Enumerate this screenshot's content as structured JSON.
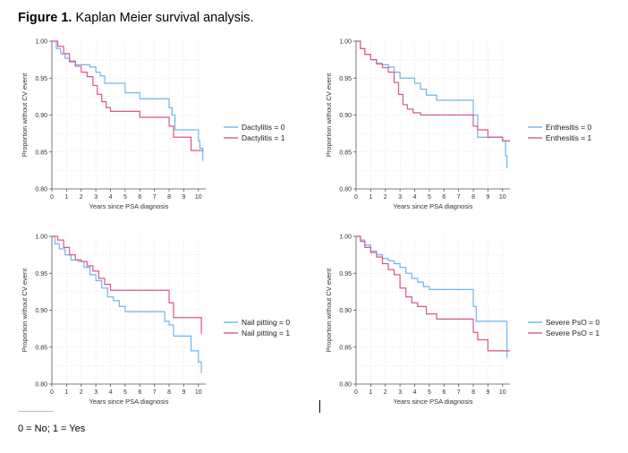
{
  "figure": {
    "title_lead": "Figure 1.",
    "title_rest": " Kaplan Meier survival analysis.",
    "footnote": "0 = No; 1 = Yes"
  },
  "colors": {
    "group0": "#6fb6e8",
    "group1": "#d9568c",
    "axis": "#555555",
    "grid": "#e3e3e3"
  },
  "chart_data": [
    {
      "type": "line",
      "xlabel": "Years since PSA diagnosis",
      "ylabel": "Proportion without CV event",
      "xlim": [
        0,
        10.5
      ],
      "ylim": [
        0.8,
        1.0
      ],
      "xticks": [
        "0",
        "1",
        "2",
        "3",
        "4",
        "5",
        "6",
        "7",
        "8",
        "9",
        "10"
      ],
      "yticks": [
        "0.80",
        "0.85",
        "0.90",
        "0.95",
        "1.00"
      ],
      "grid": true,
      "legend": "right",
      "series": [
        {
          "name": "Dactylitis = 0",
          "x": [
            0,
            0.3,
            0.6,
            0.9,
            1.2,
            1.6,
            2.0,
            2.6,
            3.0,
            3.3,
            3.6,
            4.0,
            5.0,
            6.0,
            7.0,
            8.0,
            8.2,
            8.4,
            9.0,
            9.5,
            10.0,
            10.1,
            10.3
          ],
          "y": [
            1.0,
            0.99,
            0.983,
            0.977,
            0.972,
            0.968,
            0.968,
            0.965,
            0.958,
            0.953,
            0.943,
            0.943,
            0.93,
            0.922,
            0.922,
            0.91,
            0.9,
            0.88,
            0.88,
            0.88,
            0.865,
            0.855,
            0.838
          ]
        },
        {
          "name": "Dactylitis = 1",
          "x": [
            0,
            0.4,
            0.8,
            1.2,
            1.6,
            2.0,
            2.4,
            2.8,
            3.1,
            3.4,
            3.7,
            4.0,
            5.0,
            6.0,
            7.0,
            8.0,
            8.3,
            9.0,
            9.5,
            10.0,
            10.3
          ],
          "y": [
            1.0,
            0.993,
            0.983,
            0.973,
            0.966,
            0.958,
            0.952,
            0.94,
            0.928,
            0.918,
            0.91,
            0.905,
            0.905,
            0.897,
            0.897,
            0.885,
            0.87,
            0.87,
            0.852,
            0.852,
            0.852
          ]
        }
      ]
    },
    {
      "type": "line",
      "xlabel": "Years since PSA diagnosis",
      "ylabel": "Proportion without CV event",
      "xlim": [
        0,
        10.5
      ],
      "ylim": [
        0.8,
        1.0
      ],
      "xticks": [
        "0",
        "1",
        "2",
        "3",
        "4",
        "5",
        "6",
        "7",
        "8",
        "9",
        "10"
      ],
      "yticks": [
        "0.80",
        "0.85",
        "0.90",
        "0.95",
        "1.00"
      ],
      "grid": true,
      "legend": "right",
      "series": [
        {
          "name": "Enthesitis = 0",
          "x": [
            0,
            0.3,
            0.6,
            1.0,
            1.4,
            1.8,
            2.2,
            2.6,
            3.0,
            3.5,
            4.0,
            4.4,
            4.8,
            5.5,
            6.0,
            7.0,
            8.0,
            8.3,
            9.0,
            9.5,
            10.0,
            10.2,
            10.3
          ],
          "y": [
            1.0,
            0.99,
            0.982,
            0.975,
            0.97,
            0.968,
            0.965,
            0.958,
            0.95,
            0.95,
            0.943,
            0.935,
            0.927,
            0.92,
            0.92,
            0.92,
            0.9,
            0.87,
            0.87,
            0.87,
            0.865,
            0.845,
            0.828
          ]
        },
        {
          "name": "Enthesitis = 1",
          "x": [
            0,
            0.3,
            0.6,
            1.0,
            1.4,
            1.8,
            2.2,
            2.6,
            2.9,
            3.2,
            3.5,
            3.9,
            4.4,
            5.0,
            6.0,
            7.0,
            8.0,
            8.3,
            9.0,
            10.0,
            10.5
          ],
          "y": [
            1.0,
            0.99,
            0.982,
            0.975,
            0.969,
            0.964,
            0.958,
            0.944,
            0.928,
            0.914,
            0.908,
            0.903,
            0.9,
            0.9,
            0.9,
            0.9,
            0.885,
            0.88,
            0.87,
            0.865,
            0.865
          ]
        }
      ]
    },
    {
      "type": "line",
      "xlabel": "Years since PSA diagnosis",
      "ylabel": "Proportion without CV event",
      "xlim": [
        0,
        10.5
      ],
      "ylim": [
        0.8,
        1.0
      ],
      "xticks": [
        "0",
        "1",
        "2",
        "3",
        "4",
        "5",
        "6",
        "7",
        "8",
        "9",
        "10"
      ],
      "yticks": [
        "0.80",
        "0.85",
        "0.90",
        "0.95",
        "1.00"
      ],
      "grid": true,
      "legend": "right",
      "series": [
        {
          "name": "Nail pitting = 0",
          "x": [
            0,
            0.2,
            0.5,
            0.9,
            1.3,
            1.8,
            2.2,
            2.6,
            3.0,
            3.4,
            3.8,
            4.2,
            4.6,
            5.0,
            5.5,
            6.0,
            7.0,
            7.7,
            8.0,
            8.3,
            9.0,
            9.5,
            10.0,
            10.2
          ],
          "y": [
            1.0,
            0.99,
            0.983,
            0.975,
            0.968,
            0.966,
            0.958,
            0.948,
            0.94,
            0.93,
            0.918,
            0.913,
            0.905,
            0.898,
            0.898,
            0.898,
            0.898,
            0.885,
            0.88,
            0.865,
            0.865,
            0.845,
            0.83,
            0.815
          ]
        },
        {
          "name": "Nail pitting = 1",
          "x": [
            0,
            0.4,
            0.8,
            1.2,
            1.6,
            2.0,
            2.4,
            2.8,
            3.2,
            3.6,
            4.0,
            5.0,
            6.0,
            7.0,
            8.0,
            8.3,
            9.0,
            10.0,
            10.2
          ],
          "y": [
            1.0,
            0.995,
            0.985,
            0.975,
            0.968,
            0.966,
            0.96,
            0.953,
            0.943,
            0.935,
            0.927,
            0.927,
            0.927,
            0.927,
            0.91,
            0.89,
            0.89,
            0.89,
            0.868
          ]
        }
      ]
    },
    {
      "type": "line",
      "xlabel": "Years since PSA diagnosis",
      "ylabel": "Proportion without CV event",
      "xlim": [
        0,
        10.5
      ],
      "ylim": [
        0.8,
        1.0
      ],
      "xticks": [
        "0",
        "1",
        "2",
        "3",
        "4",
        "5",
        "6",
        "7",
        "8",
        "9",
        "10"
      ],
      "yticks": [
        "0.80",
        "0.85",
        "0.90",
        "0.95",
        "1.00"
      ],
      "grid": true,
      "legend": "right",
      "series": [
        {
          "name": "Severe PsO = 0",
          "x": [
            0,
            0.3,
            0.6,
            1.0,
            1.4,
            1.8,
            2.2,
            2.6,
            3.0,
            3.4,
            3.8,
            4.2,
            4.6,
            5.0,
            6.0,
            7.0,
            8.0,
            8.2,
            9.0,
            10.0,
            10.3
          ],
          "y": [
            1.0,
            0.995,
            0.988,
            0.98,
            0.975,
            0.97,
            0.967,
            0.963,
            0.958,
            0.95,
            0.943,
            0.938,
            0.932,
            0.928,
            0.928,
            0.928,
            0.905,
            0.885,
            0.885,
            0.885,
            0.835
          ]
        },
        {
          "name": "Severe PsO = 1",
          "x": [
            0,
            0.3,
            0.6,
            1.0,
            1.4,
            1.8,
            2.2,
            2.6,
            3.0,
            3.4,
            3.8,
            4.2,
            4.8,
            5.5,
            6.0,
            7.0,
            8.0,
            8.3,
            9.0,
            9.5,
            10.0,
            10.5
          ],
          "y": [
            1.0,
            0.993,
            0.985,
            0.978,
            0.972,
            0.963,
            0.955,
            0.948,
            0.93,
            0.918,
            0.91,
            0.905,
            0.895,
            0.888,
            0.888,
            0.888,
            0.87,
            0.86,
            0.845,
            0.845,
            0.845,
            0.845
          ]
        }
      ]
    }
  ]
}
